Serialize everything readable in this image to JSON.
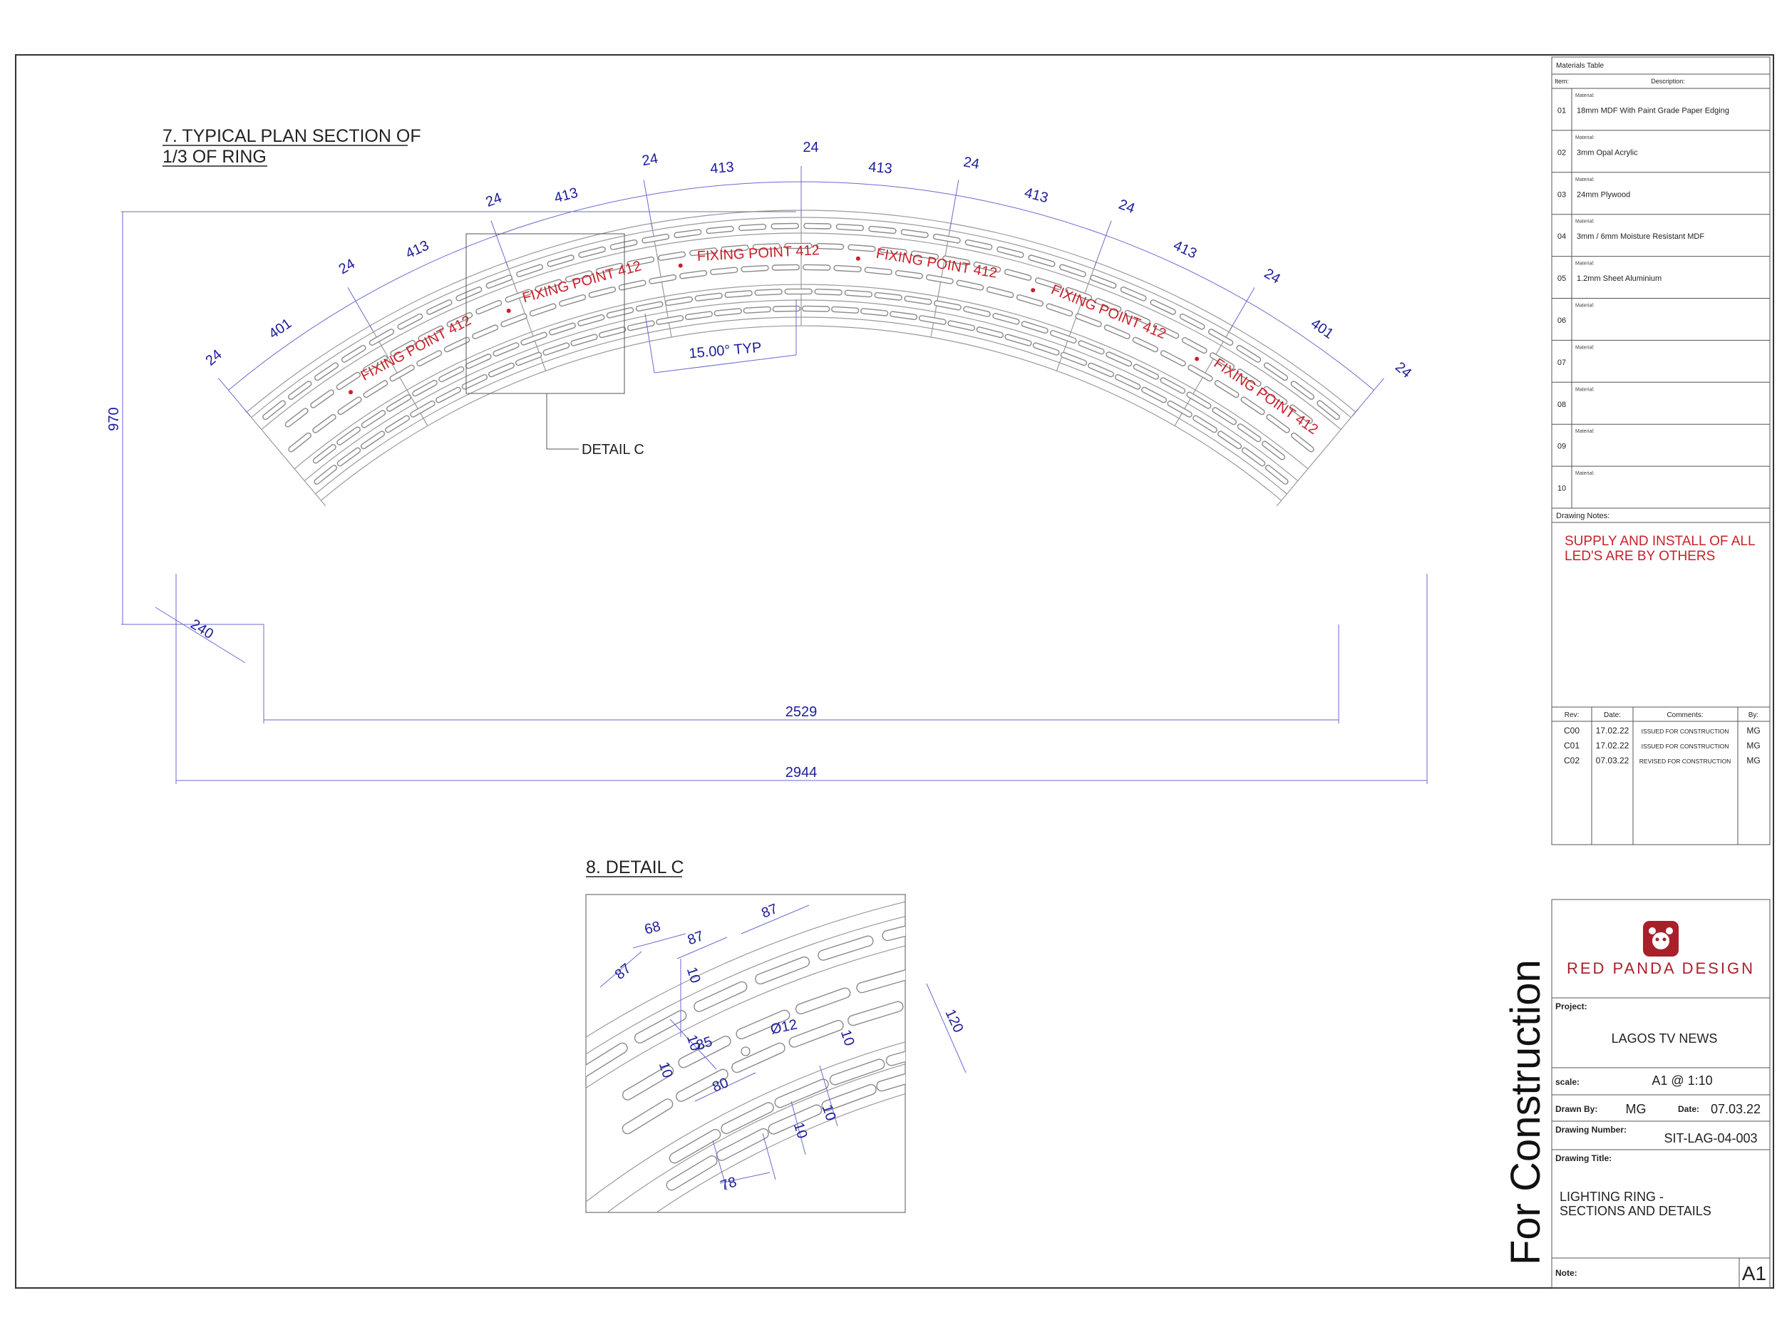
{
  "plan": {
    "title_line1": "7. TYPICAL PLAN SECTION OF",
    "title_line2": "1/3 OF RING",
    "detail_label": "DETAIL C",
    "angle_label": "15.00° TYP",
    "height_label": "970",
    "width_inner": "2529",
    "width_outer": "2944",
    "depth_label": "240",
    "segment_outer_labels": [
      "401",
      "413",
      "413",
      "413",
      "413",
      "413",
      "413",
      "401"
    ],
    "gap_labels": [
      "24",
      "24",
      "24",
      "24",
      "24",
      "24",
      "24",
      "24",
      "24"
    ],
    "fixing_point_label": "FIXING POINT 412"
  },
  "detail": {
    "title": "8. DETAIL C",
    "labels": {
      "d87a": "87",
      "d68": "68",
      "d87b": "87",
      "d87c": "87",
      "d10a": "10",
      "d10b": "10",
      "d10c": "10",
      "d85": "85",
      "d12": "Ø12",
      "d120": "120",
      "d10d": "10",
      "d80": "80",
      "d10e": "10",
      "d10f": "10",
      "d78": "78"
    }
  },
  "materials": {
    "header": "Materials Table",
    "col_item": "Item:",
    "col_desc": "Description:",
    "material_label": "Material:",
    "rows": [
      {
        "num": "01",
        "desc": "18mm MDF With Paint Grade Paper Edging"
      },
      {
        "num": "02",
        "desc": "3mm Opal Acrylic"
      },
      {
        "num": "03",
        "desc": "24mm Plywood"
      },
      {
        "num": "04",
        "desc": "3mm / 6mm Moisture Resistant MDF"
      },
      {
        "num": "05",
        "desc": "1.2mm Sheet Aluminium"
      },
      {
        "num": "06",
        "desc": ""
      },
      {
        "num": "07",
        "desc": ""
      },
      {
        "num": "08",
        "desc": ""
      },
      {
        "num": "09",
        "desc": ""
      },
      {
        "num": "10",
        "desc": ""
      }
    ]
  },
  "notes": {
    "header": "Drawing Notes:",
    "line1": "SUPPLY AND INSTALL OF ALL",
    "line2": "LED'S ARE BY OTHERS"
  },
  "revisions": {
    "headers": {
      "rev": "Rev:",
      "date": "Date:",
      "comments": "Comments:",
      "by": "By:"
    },
    "rows": [
      {
        "rev": "C00",
        "date": "17.02.22",
        "comment": "ISSUED FOR CONSTRUCTION",
        "by": "MG"
      },
      {
        "rev": "C01",
        "date": "17.02.22",
        "comment": "ISSUED FOR CONSTRUCTION",
        "by": "MG"
      },
      {
        "rev": "C02",
        "date": "07.03.22",
        "comment": "REVISED FOR CONSTRUCTION",
        "by": "MG"
      }
    ]
  },
  "titleblock": {
    "stamp": "For Construction",
    "company": "RED  PANDA DESIGN",
    "project_label": "Project:",
    "project": "LAGOS TV NEWS",
    "scale_label": "scale:",
    "scale": "A1 @ 1:10",
    "drawn_label": "Drawn By:",
    "drawn_by": "MG",
    "date_label": "Date:",
    "date": "07.03.22",
    "drawing_number_label": "Drawing Number:",
    "drawing_number": "SIT-LAG-04-003",
    "drawing_title_label": "Drawing Title:",
    "drawing_title_line1": "LIGHTING RING -",
    "drawing_title_line2": "SECTIONS AND DETAILS",
    "note_label": "Note:",
    "sheet_size": "A1"
  },
  "colors": {
    "dimension": "#1c1c9a",
    "fixing": "#c8202a",
    "brand": "#a8202a",
    "linework": "#9a9a9a"
  }
}
